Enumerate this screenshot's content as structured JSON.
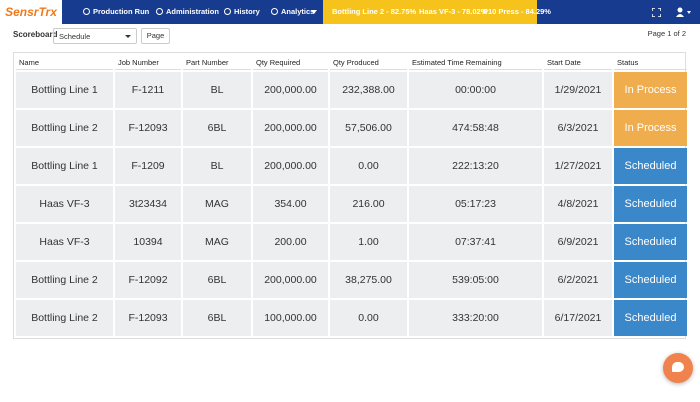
{
  "nav": {
    "logo": "SensrTrx",
    "items": [
      "Production Run",
      "Administration",
      "History",
      "Analytics"
    ],
    "banner": [
      "Bottling Line 2 - 82.75%",
      "Haas VF-3 - 78.02%",
      "P10 Press - 84.29%"
    ]
  },
  "toolbar": {
    "label": "Scoreboard",
    "select": "Schedule",
    "button": "Page",
    "pagination": "Page 1 of 2"
  },
  "table": {
    "headers": [
      "Name",
      "Job Number",
      "Part Number",
      "Qty Required",
      "Qty Produced",
      "Estimated Time Remaining",
      "Start Date",
      "Status"
    ],
    "rows": [
      [
        "Bottling Line 1",
        "F-1211",
        "BL",
        "200,000.00",
        "232,388.00",
        "00:00:00",
        "1/29/2021",
        "In Process"
      ],
      [
        "Bottling Line 2",
        "F-12093",
        "6BL",
        "200,000.00",
        "57,506.00",
        "474:58:48",
        "6/3/2021",
        "In Process"
      ],
      [
        "Bottling Line 1",
        "F-1209",
        "BL",
        "200,000.00",
        "0.00",
        "222:13:20",
        "1/27/2021",
        "Scheduled"
      ],
      [
        "Haas VF-3",
        "3t23434",
        "MAG",
        "354.00",
        "216.00",
        "05:17:23",
        "4/8/2021",
        "Scheduled"
      ],
      [
        "Haas VF-3",
        "10394",
        "MAG",
        "200.00",
        "1.00",
        "07:37:41",
        "6/9/2021",
        "Scheduled"
      ],
      [
        "Bottling Line 2",
        "F-12092",
        "6BL",
        "200,000.00",
        "38,275.00",
        "539:05:00",
        "6/2/2021",
        "Scheduled"
      ],
      [
        "Bottling Line 2",
        "F-12093",
        "6BL",
        "100,000.00",
        "0.00",
        "333:20:00",
        "6/17/2021",
        "Scheduled"
      ]
    ],
    "status_colors": [
      "#f0ad4e",
      "#f0ad4e",
      "#3a87c9",
      "#3a87c9",
      "#3a87c9",
      "#3a87c9",
      "#3a87c9"
    ]
  }
}
